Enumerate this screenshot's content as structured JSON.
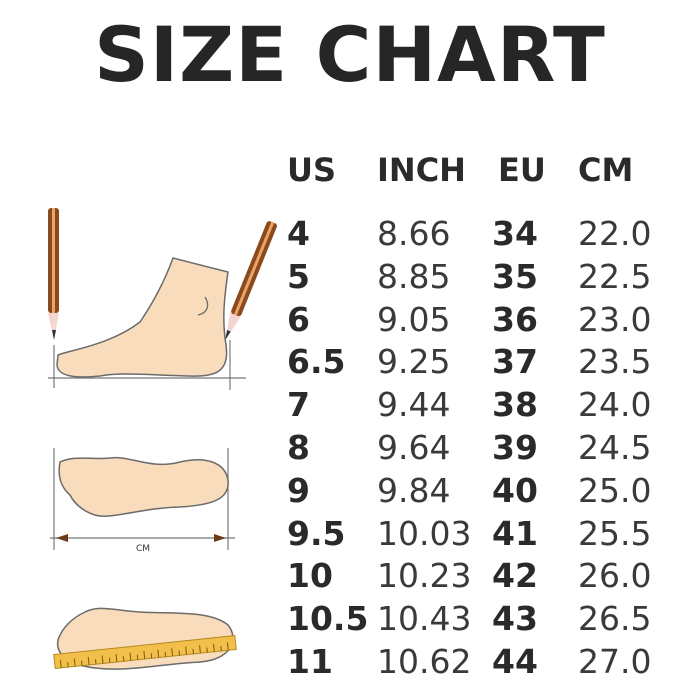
{
  "title": "SIZE CHART",
  "table": {
    "headers": [
      "US",
      "INCH",
      "EU",
      "CM"
    ],
    "rows": [
      [
        "4",
        "8.66",
        "34",
        "22.0"
      ],
      [
        "5",
        "8.85",
        "35",
        "22.5"
      ],
      [
        "6",
        "9.05",
        "36",
        "23.0"
      ],
      [
        "6.5",
        "9.25",
        "37",
        "23.5"
      ],
      [
        "7",
        "9.44",
        "38",
        "24.0"
      ],
      [
        "8",
        "9.64",
        "39",
        "24.5"
      ],
      [
        "9",
        "9.84",
        "40",
        "25.0"
      ],
      [
        "9.5",
        "10.03",
        "41",
        "25.5"
      ],
      [
        "10",
        "10.23",
        "42",
        "26.0"
      ],
      [
        "10.5",
        "10.43",
        "43",
        "26.5"
      ],
      [
        "11",
        "10.62",
        "44",
        "27.0"
      ]
    ]
  },
  "illustration": {
    "measure_label": "CM",
    "colors": {
      "skin": "#f8dcbc",
      "outline": "#6b6b6b",
      "pencil": "#8a4a1e",
      "ruler": "#f2c04a"
    }
  }
}
